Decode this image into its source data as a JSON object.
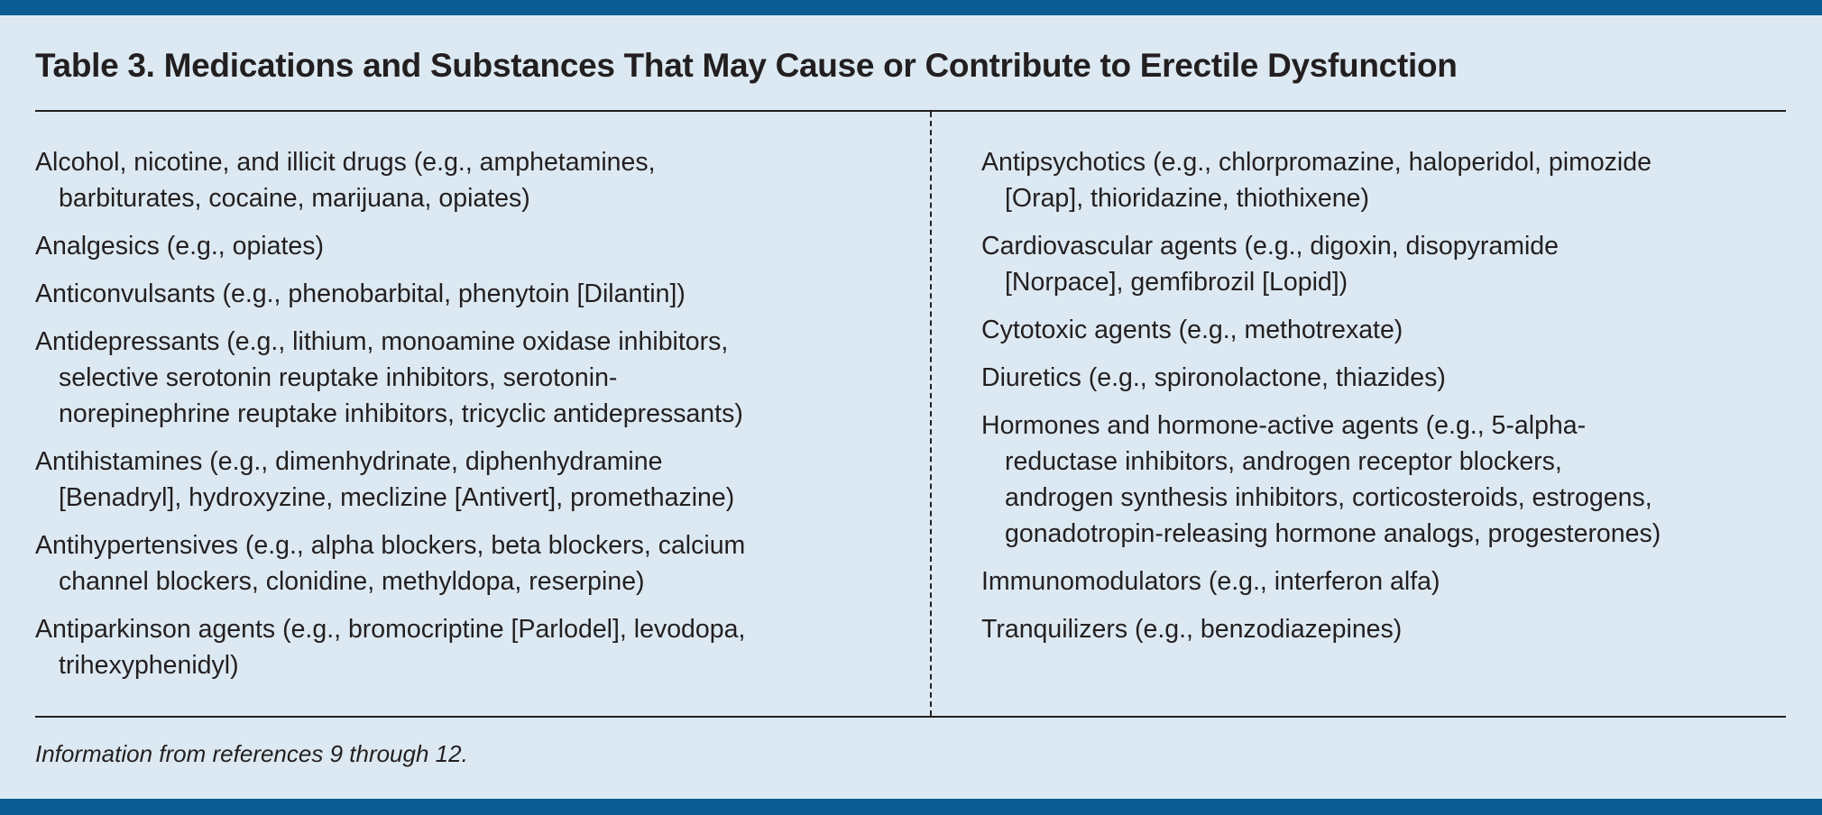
{
  "title": "Table 3. Medications and Substances That May Cause or Contribute to Erectile Dysfunction",
  "colors": {
    "accent_bar": "#0a5c92",
    "background": "#dce9f2",
    "text": "#231f20"
  },
  "left_items": [
    {
      "lines": [
        "Alcohol, nicotine, and illicit drugs (e.g., amphetamines,",
        "barbiturates, cocaine, marijuana, opiates)"
      ]
    },
    {
      "lines": [
        "Analgesics (e.g., opiates)"
      ]
    },
    {
      "lines": [
        "Anticonvulsants (e.g., phenobarbital, phenytoin [Dilantin])"
      ]
    },
    {
      "lines": [
        "Antidepressants (e.g., lithium, monoamine oxidase inhibitors,",
        "selective serotonin reuptake inhibitors, serotonin-",
        "norepinephrine reuptake inhibitors, tricyclic antidepressants)"
      ]
    },
    {
      "lines": [
        "Antihistamines (e.g., dimenhydrinate, diphenhydramine",
        "[Benadryl], hydroxyzine, meclizine [Antivert], promethazine)"
      ]
    },
    {
      "lines": [
        "Antihypertensives (e.g., alpha blockers, beta blockers, calcium",
        "channel blockers, clonidine, methyldopa, reserpine)"
      ]
    },
    {
      "lines": [
        "Antiparkinson agents (e.g., bromocriptine [Parlodel], levodopa,",
        "trihexyphenidyl)"
      ]
    }
  ],
  "right_items": [
    {
      "lines": [
        "Antipsychotics (e.g., chlorpromazine, haloperidol, pimozide",
        "[Orap], thioridazine, thiothixene)"
      ]
    },
    {
      "lines": [
        "Cardiovascular agents (e.g., digoxin, disopyramide",
        "[Norpace], gemfibrozil [Lopid])"
      ]
    },
    {
      "lines": [
        "Cytotoxic agents (e.g., methotrexate)"
      ]
    },
    {
      "lines": [
        "Diuretics (e.g., spironolactone, thiazides)"
      ]
    },
    {
      "lines": [
        "Hormones and hormone-active agents (e.g., 5-alpha-",
        "reductase inhibitors, androgen receptor blockers,",
        "androgen synthesis inhibitors, corticosteroids, estrogens,",
        "gonadotropin-releasing hormone analogs, progesterones)"
      ]
    },
    {
      "lines": [
        "Immunomodulators (e.g., interferon alfa)"
      ]
    },
    {
      "lines": [
        "Tranquilizers (e.g., benzodiazepines)"
      ]
    }
  ],
  "footnote": "Information from references 9 through 12."
}
